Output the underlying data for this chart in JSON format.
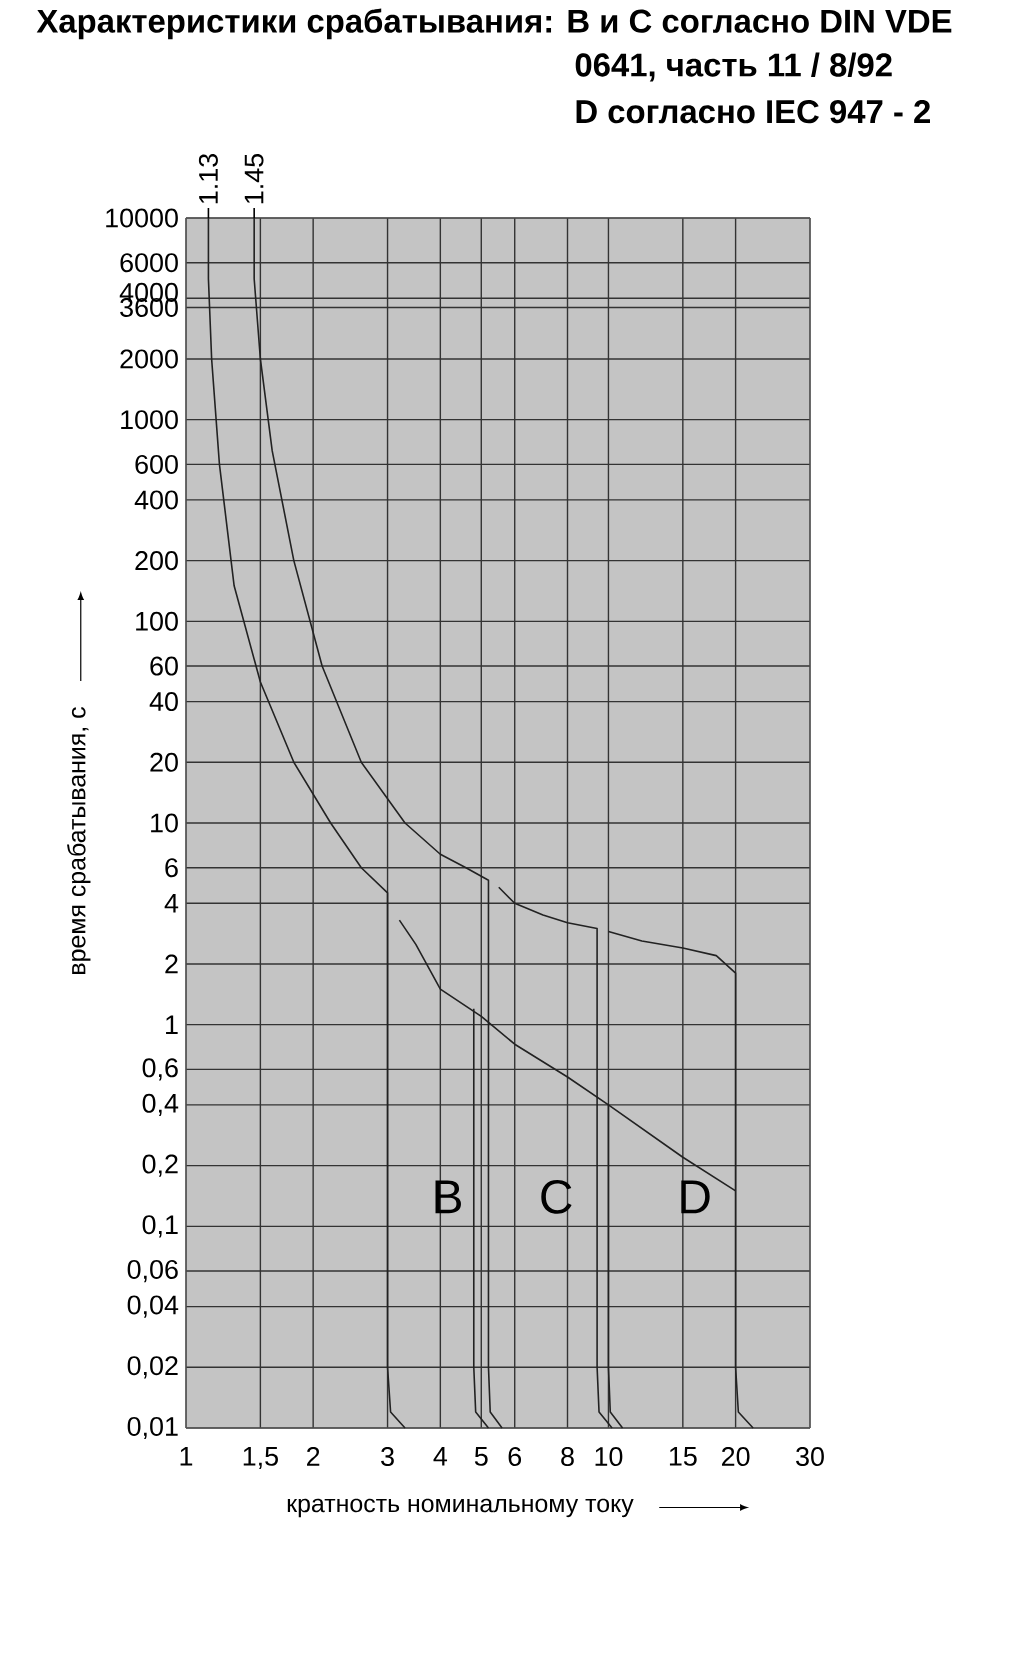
{
  "chart_data": {
    "type": "line",
    "title": "Характеристики срабатывания: B и C согласно DIN VDE 0641, часть 11 / 8/92",
    "subtitle": "D согласно IEC 947 - 2",
    "xlabel": "кратность номинальному току",
    "ylabel": "время срабатывания, с",
    "log": "xy",
    "grid": true,
    "xlim": [
      1,
      30
    ],
    "ylim": [
      0.01,
      10000
    ],
    "xticks": [
      1,
      {
        "value": 1.5,
        "label": "1,5"
      },
      2,
      3,
      4,
      5,
      6,
      8,
      10,
      15,
      20,
      30
    ],
    "annotations": [
      {
        "text": "1.13",
        "x": 1.13,
        "y": 10000
      },
      {
        "text": "1.45",
        "x": 1.45,
        "y": 10000
      }
    ],
    "yticks": [
      {
        "value": 0.01,
        "label": "0,01"
      },
      {
        "value": 0.02,
        "label": "0,02"
      },
      {
        "value": 0.04,
        "label": "0,04"
      },
      {
        "value": 0.06,
        "label": "0,06"
      },
      {
        "value": 0.1,
        "label": "0,1"
      },
      {
        "value": 0.2,
        "label": "0,2"
      },
      {
        "value": 0.4,
        "label": "0,4"
      },
      {
        "value": 0.6,
        "label": "0,6"
      },
      1,
      2,
      4,
      6,
      10,
      20,
      40,
      60,
      100,
      200,
      400,
      600,
      1000,
      2000,
      3600,
      4000,
      6000,
      10000
    ],
    "series": [
      {
        "color": "#222222",
        "x": [
          1.13,
          1.13,
          1.15,
          1.2,
          1.3,
          1.5,
          1.8,
          2.2,
          2.6,
          3,
          3,
          3.05,
          3.3
        ],
        "values": [
          10000,
          5000,
          2000,
          600,
          150,
          50,
          20,
          10,
          6,
          4.5,
          0.02,
          0.012,
          0.01
        ]
      },
      {
        "color": "#222222",
        "x": [
          3.2,
          3.5,
          4,
          5,
          6,
          8,
          10,
          15,
          20
        ],
        "values": [
          3.3,
          2.5,
          1.5,
          1.1,
          0.8,
          0.55,
          0.4,
          0.22,
          0.15
        ]
      },
      {
        "name": "B",
        "color": "#222222",
        "x": [
          1.45,
          1.45,
          1.5,
          1.6,
          1.8,
          2.1,
          2.6,
          3.3,
          4,
          4.6,
          5.2,
          5.2,
          5.25,
          5.6
        ],
        "values": [
          10000,
          5000,
          2000,
          700,
          200,
          60,
          20,
          10,
          7,
          6,
          5.2,
          0.02,
          0.012,
          0.01
        ]
      },
      {
        "color": "#222222",
        "x": [
          4.8,
          4.8,
          4.85,
          5.2
        ],
        "values": [
          1.2,
          0.02,
          0.012,
          0.01
        ]
      },
      {
        "name": "C",
        "color": "#222222",
        "x": [
          5.5,
          6,
          7,
          8,
          9.4,
          9.4,
          9.5,
          10.2
        ],
        "values": [
          4.8,
          4,
          3.5,
          3.2,
          3,
          0.02,
          0.012,
          0.01
        ]
      },
      {
        "color": "#222222",
        "x": [
          10,
          10,
          10.1,
          10.8
        ],
        "values": [
          0.4,
          0.02,
          0.012,
          0.01
        ]
      },
      {
        "name": "D",
        "color": "#222222",
        "x": [
          10,
          12,
          15,
          18,
          20,
          20,
          20.3,
          22
        ],
        "values": [
          2.9,
          2.6,
          2.4,
          2.2,
          1.8,
          0.02,
          0.012,
          0.01
        ]
      }
    ]
  }
}
